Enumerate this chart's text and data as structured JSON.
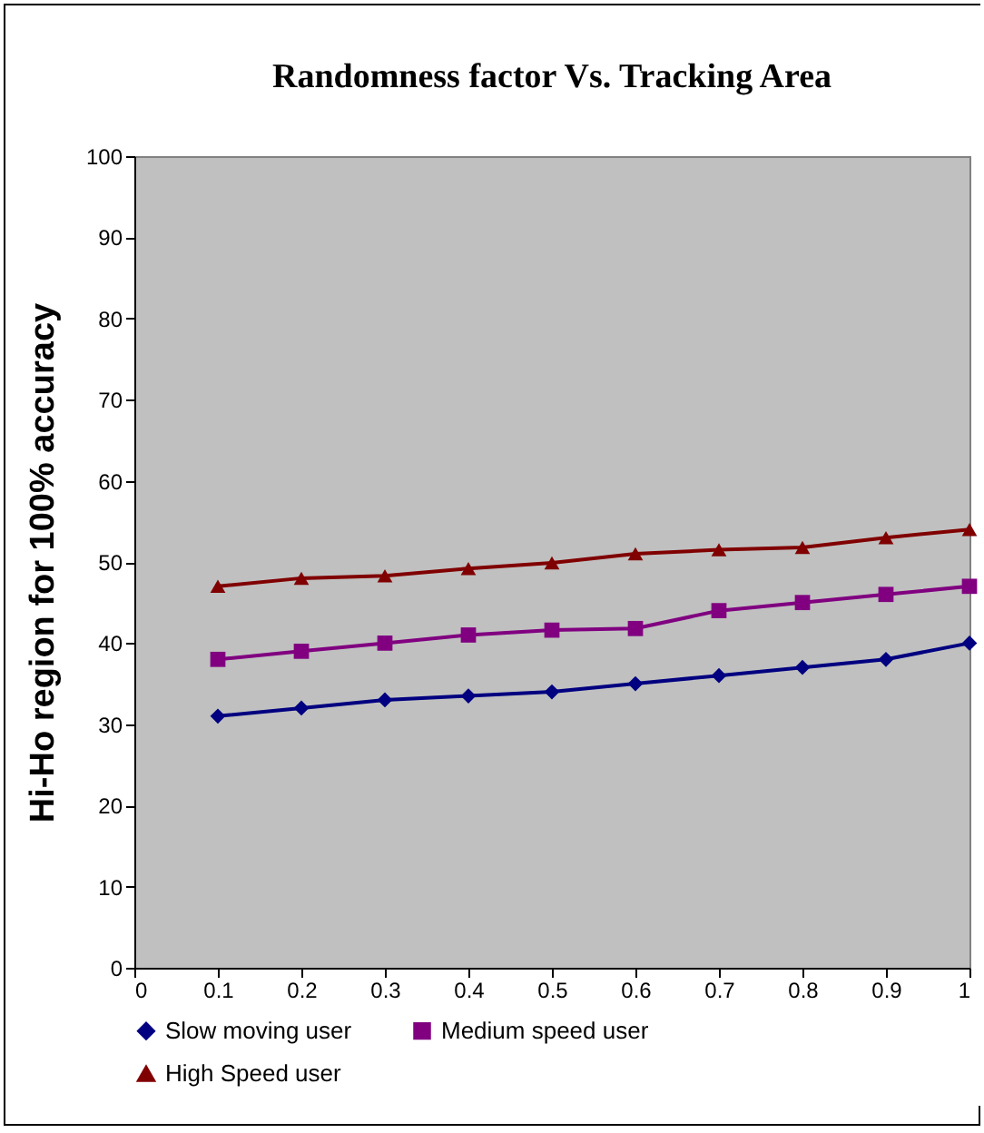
{
  "chart_data": {
    "type": "line",
    "title": "Randomness factor Vs. Tracking Area",
    "ylabel": "Hi-Ho region for 100% accuracy",
    "x": [
      0.1,
      0.2,
      0.3,
      0.4,
      0.5,
      0.6,
      0.7,
      0.8,
      0.9,
      1
    ],
    "xlim": [
      0,
      1
    ],
    "xticks": [
      0,
      0.1,
      0.2,
      0.3,
      0.4,
      0.5,
      0.6,
      0.7,
      0.8,
      0.9,
      1
    ],
    "ylim": [
      0,
      100
    ],
    "yticks": [
      0,
      10,
      20,
      30,
      40,
      50,
      60,
      70,
      80,
      90,
      100
    ],
    "grid": false,
    "legend": "bottom",
    "line_style": "solid",
    "series": [
      {
        "name": "Slow moving user",
        "color": "#000080",
        "marker": "diamond",
        "values": [
          31,
          32,
          33,
          33.5,
          34,
          35,
          36,
          37,
          38,
          40
        ]
      },
      {
        "name": "Medium speed user",
        "color": "#800080",
        "marker": "square",
        "values": [
          38,
          39,
          40,
          41,
          41.6,
          41.8,
          44,
          45,
          46,
          47
        ]
      },
      {
        "name": "High Speed user",
        "color": "#800000",
        "marker": "triangle",
        "values": [
          47,
          48,
          48.3,
          49.2,
          49.9,
          51,
          51.5,
          51.8,
          53,
          54
        ]
      }
    ]
  }
}
